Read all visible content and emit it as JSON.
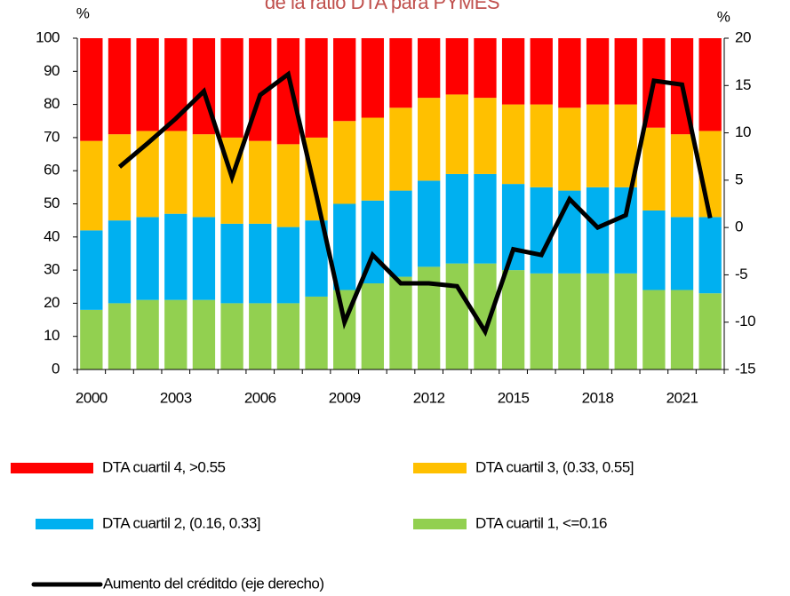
{
  "chart_data": {
    "type": "stacked_bar_line",
    "title": "de la ratio DTA para PYMES",
    "y_unit": "%",
    "y2_unit": "%",
    "categories": [
      "2000",
      null,
      null,
      "2003",
      null,
      null,
      "2006",
      null,
      null,
      "2009",
      null,
      null,
      "2012",
      null,
      null,
      "2015",
      null,
      null,
      "2018",
      null,
      null,
      "2021",
      null
    ],
    "ylim": [
      0,
      100
    ],
    "yticks": [
      0,
      10,
      20,
      30,
      40,
      50,
      60,
      70,
      80,
      90,
      100
    ],
    "y2lim": [
      -15,
      20
    ],
    "y2ticks": [
      -15,
      -10,
      -5,
      0,
      5,
      10,
      15,
      20
    ],
    "series": [
      {
        "name": "DTA cuartil 1, <=0.16",
        "color": "#92d050",
        "values": [
          18,
          20,
          21,
          21,
          21,
          20,
          20,
          20,
          22,
          24,
          26,
          28,
          31,
          32,
          32,
          30,
          29,
          29,
          29,
          29,
          24,
          24,
          23
        ]
      },
      {
        "name": "DTA cuartil 2, (0.16, 0.33]",
        "color": "#00b0f0",
        "values": [
          24,
          25,
          25,
          26,
          25,
          24,
          24,
          23,
          23,
          26,
          25,
          26,
          26,
          27,
          27,
          26,
          26,
          25,
          26,
          26,
          24,
          22,
          23
        ]
      },
      {
        "name": "DTA cuartil 3, (0.33, 0.55]",
        "color": "#ffc000",
        "values": [
          27,
          26,
          26,
          25,
          25,
          26,
          25,
          25,
          25,
          25,
          25,
          25,
          25,
          24,
          23,
          24,
          25,
          25,
          25,
          25,
          25,
          25,
          26
        ]
      },
      {
        "name": "DTA cuartil 4, >0.55",
        "color": "#ff0000",
        "values": [
          31,
          29,
          28,
          28,
          29,
          30,
          31,
          32,
          30,
          25,
          24,
          21,
          18,
          17,
          18,
          20,
          20,
          21,
          20,
          20,
          27,
          29,
          28
        ]
      },
      {
        "name": "Aumento del créditdo (eje derecho)",
        "color": "#000000",
        "axis": "y2",
        "line": true,
        "values": [
          null,
          6.4,
          8.9,
          11.5,
          14.4,
          5.3,
          14,
          16.2,
          3.4,
          -10,
          -2.9,
          -5.9,
          -5.9,
          -6.2,
          -11,
          -2.3,
          -2.9,
          3,
          0,
          1.3,
          15.5,
          15.1,
          1
        ]
      }
    ]
  }
}
